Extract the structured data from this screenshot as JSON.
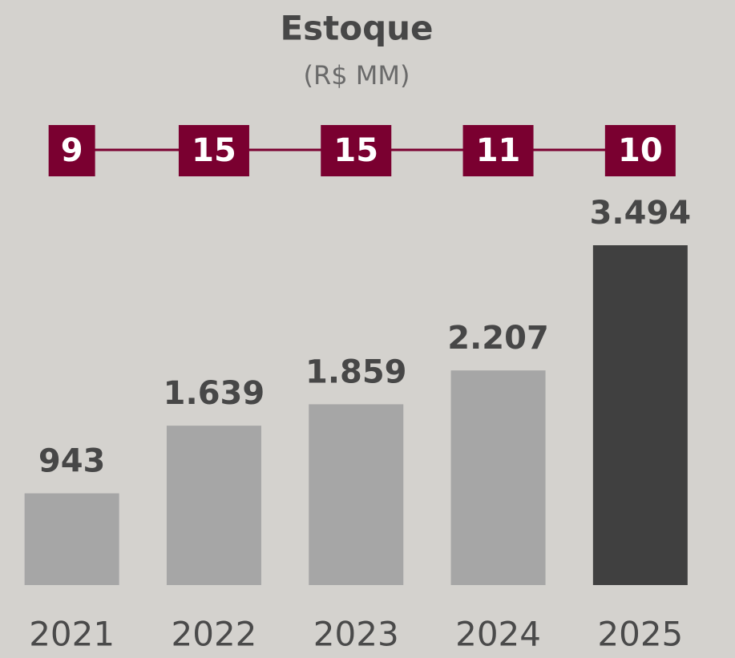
{
  "chart_data": {
    "type": "bar",
    "title": "Estoque",
    "subtitle": "(R$ MM)",
    "categories": [
      "2021",
      "2022",
      "2023",
      "2024",
      "2025"
    ],
    "values": [
      943,
      1639,
      1859,
      2207,
      3494
    ],
    "value_labels": [
      "943",
      "1.639",
      "1.859",
      "2.207",
      "3.494"
    ],
    "colors": [
      "#a6a6a6",
      "#a6a6a6",
      "#a6a6a6",
      "#a6a6a6",
      "#404040"
    ],
    "top_values": [
      9,
      15,
      15,
      11,
      10
    ],
    "top_color": "#7a0030"
  }
}
